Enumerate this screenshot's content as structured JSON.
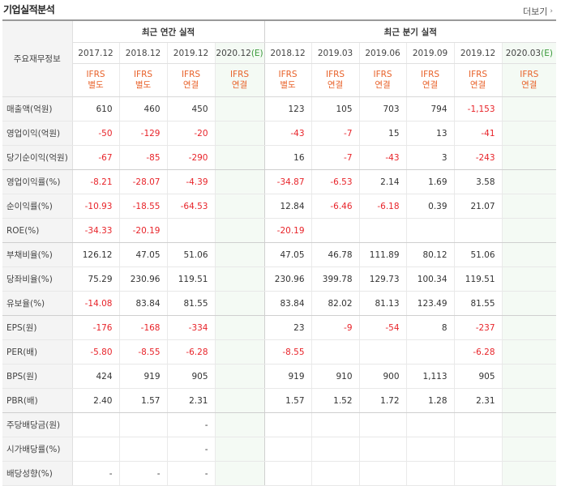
{
  "header": {
    "title": "기업실적분석",
    "more_label": "더보기"
  },
  "table": {
    "corner_label": "주요재무정보",
    "annual_label": "최근 연간 실적",
    "quarter_label": "최근 분기 실적",
    "columns": [
      {
        "period": "2017.12",
        "type1": "IFRS",
        "type2": "별도",
        "estimate": false
      },
      {
        "period": "2018.12",
        "type1": "IFRS",
        "type2": "별도",
        "estimate": false
      },
      {
        "period": "2019.12",
        "type1": "IFRS",
        "type2": "연결",
        "estimate": false
      },
      {
        "period": "2020.12",
        "period_mark": "(E)",
        "type1": "IFRS",
        "type2": "연결",
        "estimate": true
      },
      {
        "period": "2018.12",
        "type1": "IFRS",
        "type2": "별도",
        "estimate": false
      },
      {
        "period": "2019.03",
        "type1": "IFRS",
        "type2": "연결",
        "estimate": false
      },
      {
        "period": "2019.06",
        "type1": "IFRS",
        "type2": "연결",
        "estimate": false
      },
      {
        "period": "2019.09",
        "type1": "IFRS",
        "type2": "연결",
        "estimate": false
      },
      {
        "period": "2019.12",
        "type1": "IFRS",
        "type2": "연결",
        "estimate": false
      },
      {
        "period": "2020.03",
        "period_mark": "(E)",
        "type1": "IFRS",
        "type2": "연결",
        "estimate": true
      }
    ],
    "rows": [
      {
        "label": "매출액(억원)",
        "values": [
          "610",
          "460",
          "450",
          "",
          "123",
          "105",
          "703",
          "794",
          "-1,153",
          ""
        ]
      },
      {
        "label": "영업이익(억원)",
        "values": [
          "-50",
          "-129",
          "-20",
          "",
          "-43",
          "-7",
          "15",
          "13",
          "-41",
          ""
        ]
      },
      {
        "label": "당기순이익(억원)",
        "values": [
          "-67",
          "-85",
          "-290",
          "",
          "16",
          "-7",
          "-43",
          "3",
          "-243",
          ""
        ]
      },
      {
        "label": "영업이익률(%)",
        "values": [
          "-8.21",
          "-28.07",
          "-4.39",
          "",
          "-34.87",
          "-6.53",
          "2.14",
          "1.69",
          "3.58",
          ""
        ]
      },
      {
        "label": "순이익률(%)",
        "values": [
          "-10.93",
          "-18.55",
          "-64.53",
          "",
          "12.84",
          "-6.46",
          "-6.18",
          "0.39",
          "21.07",
          ""
        ]
      },
      {
        "label": "ROE(%)",
        "values": [
          "-34.33",
          "-20.19",
          "",
          "",
          "-20.19",
          "",
          "",
          "",
          "",
          ""
        ]
      },
      {
        "label": "부채비율(%)",
        "values": [
          "126.12",
          "47.05",
          "51.06",
          "",
          "47.05",
          "46.78",
          "111.89",
          "80.12",
          "51.06",
          ""
        ]
      },
      {
        "label": "당좌비율(%)",
        "values": [
          "75.29",
          "230.96",
          "119.51",
          "",
          "230.96",
          "399.78",
          "129.73",
          "100.34",
          "119.51",
          ""
        ]
      },
      {
        "label": "유보율(%)",
        "values": [
          "-14.08",
          "83.84",
          "81.55",
          "",
          "83.84",
          "82.02",
          "81.13",
          "123.49",
          "81.55",
          ""
        ]
      },
      {
        "label": "EPS(원)",
        "values": [
          "-176",
          "-168",
          "-334",
          "",
          "23",
          "-9",
          "-54",
          "8",
          "-237",
          ""
        ]
      },
      {
        "label": "PER(배)",
        "values": [
          "-5.80",
          "-8.55",
          "-6.28",
          "",
          "-8.55",
          "",
          "",
          "",
          "-6.28",
          ""
        ]
      },
      {
        "label": "BPS(원)",
        "values": [
          "424",
          "919",
          "905",
          "",
          "919",
          "910",
          "900",
          "1,113",
          "905",
          ""
        ]
      },
      {
        "label": "PBR(배)",
        "values": [
          "2.40",
          "1.57",
          "2.31",
          "",
          "1.57",
          "1.52",
          "1.72",
          "1.28",
          "2.31",
          ""
        ]
      },
      {
        "label": "주당배당금(원)",
        "values": [
          "",
          "",
          "-",
          "",
          "",
          "",
          "",
          "",
          "",
          ""
        ]
      },
      {
        "label": "시가배당률(%)",
        "values": [
          "",
          "",
          "-",
          "",
          "",
          "",
          "",
          "",
          "",
          ""
        ]
      },
      {
        "label": "배당성향(%)",
        "values": [
          "-",
          "-",
          "-",
          "",
          "",
          "",
          "",
          "",
          "",
          ""
        ]
      }
    ],
    "group_ends": [
      2,
      5,
      8,
      12
    ],
    "colors": {
      "negative": "#e8242a",
      "ifrs": "#e8622a",
      "estimate_bg": "#f4faf4",
      "estimate_mark": "#3a9a3a"
    }
  }
}
